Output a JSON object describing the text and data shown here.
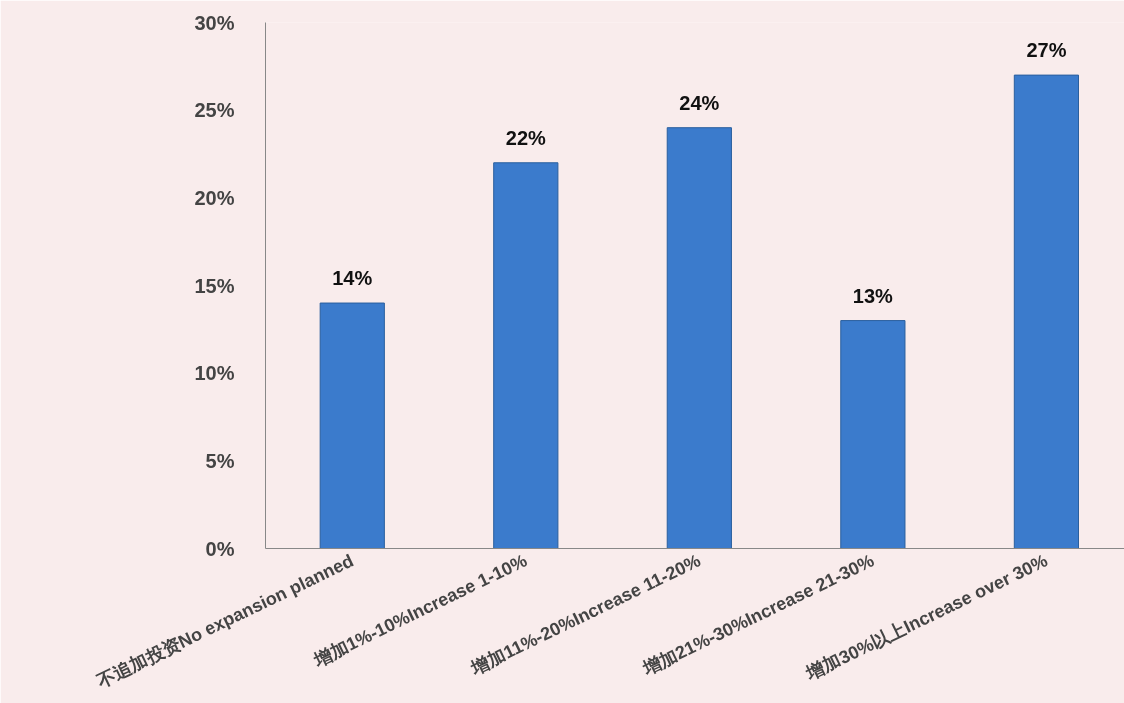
{
  "chart_data": {
    "type": "bar",
    "categories": [
      "不追加投资No expansion planned",
      "增加1%-10%Increase 1-10%",
      "增加11%-20%Increase 11-20%",
      "增加21%-30%Increase 21-30%",
      "增加30%以上Increase over 30%"
    ],
    "values": [
      14,
      22,
      24,
      13,
      27
    ],
    "value_labels": [
      "14%",
      "22%",
      "24%",
      "13%",
      "27%"
    ],
    "color": "#3b7bcc",
    "ylim": [
      0,
      30
    ],
    "yticks": [
      {
        "value": 0,
        "label": "0%"
      },
      {
        "value": 5,
        "label": "5%"
      },
      {
        "value": 10,
        "label": "10%"
      },
      {
        "value": 15,
        "label": "15%"
      },
      {
        "value": 20,
        "label": "20%"
      },
      {
        "value": 25,
        "label": "25%"
      },
      {
        "value": 30,
        "label": "30%"
      }
    ],
    "grid": false
  }
}
